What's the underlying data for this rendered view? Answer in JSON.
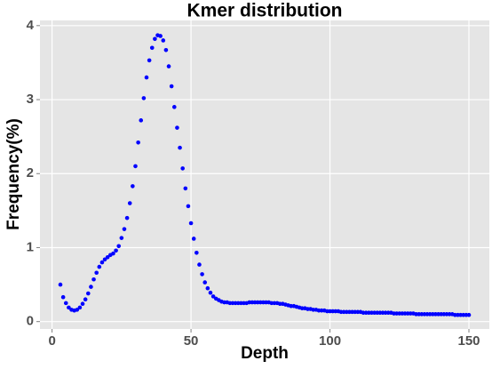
{
  "chart_data": {
    "type": "scatter",
    "title": "Kmer distribution",
    "x_label": "Depth",
    "y_label": "Frequency(%)",
    "color": "#0000ff",
    "grid": true,
    "xlim": [
      -4.35,
      157.35
    ],
    "ylim": [
      -0.1,
      4.07
    ],
    "xticks": [
      0,
      50,
      100,
      150
    ],
    "yticks": [
      0,
      1,
      2,
      3,
      4
    ],
    "x": [
      3,
      4,
      5,
      6,
      7,
      8,
      9,
      10,
      11,
      12,
      13,
      14,
      15,
      16,
      17,
      18,
      19,
      20,
      21,
      22,
      23,
      24,
      25,
      26,
      27,
      28,
      29,
      30,
      31,
      32,
      33,
      34,
      35,
      36,
      37,
      38,
      39,
      40,
      41,
      42,
      43,
      44,
      45,
      46,
      47,
      48,
      49,
      50,
      51,
      52,
      53,
      54,
      55,
      56,
      57,
      58,
      59,
      60,
      61,
      62,
      63,
      64,
      65,
      66,
      67,
      68,
      69,
      70,
      71,
      72,
      73,
      74,
      75,
      76,
      77,
      78,
      79,
      80,
      81,
      82,
      83,
      84,
      85,
      86,
      87,
      88,
      89,
      90,
      91,
      92,
      93,
      94,
      95,
      96,
      97,
      98,
      99,
      100,
      101,
      102,
      103,
      104,
      105,
      106,
      107,
      108,
      109,
      110,
      111,
      112,
      113,
      114,
      115,
      116,
      117,
      118,
      119,
      120,
      121,
      122,
      123,
      124,
      125,
      126,
      127,
      128,
      129,
      130,
      131,
      132,
      133,
      134,
      135,
      136,
      137,
      138,
      139,
      140,
      141,
      142,
      143,
      144,
      145,
      146,
      147,
      148,
      149,
      150
    ],
    "values": [
      0.5,
      0.33,
      0.25,
      0.19,
      0.16,
      0.15,
      0.16,
      0.19,
      0.24,
      0.3,
      0.38,
      0.47,
      0.57,
      0.66,
      0.74,
      0.8,
      0.84,
      0.87,
      0.9,
      0.92,
      0.96,
      1.02,
      1.13,
      1.25,
      1.4,
      1.6,
      1.83,
      2.1,
      2.42,
      2.72,
      3.02,
      3.3,
      3.53,
      3.7,
      3.82,
      3.87,
      3.86,
      3.8,
      3.67,
      3.45,
      3.18,
      2.9,
      2.62,
      2.35,
      2.07,
      1.8,
      1.56,
      1.33,
      1.12,
      0.93,
      0.77,
      0.64,
      0.53,
      0.45,
      0.39,
      0.34,
      0.31,
      0.29,
      0.27,
      0.26,
      0.26,
      0.25,
      0.25,
      0.25,
      0.25,
      0.25,
      0.25,
      0.25,
      0.26,
      0.26,
      0.26,
      0.26,
      0.26,
      0.26,
      0.26,
      0.26,
      0.25,
      0.25,
      0.25,
      0.24,
      0.24,
      0.23,
      0.22,
      0.21,
      0.21,
      0.2,
      0.19,
      0.18,
      0.18,
      0.17,
      0.17,
      0.16,
      0.16,
      0.15,
      0.15,
      0.15,
      0.14,
      0.14,
      0.14,
      0.14,
      0.14,
      0.13,
      0.13,
      0.13,
      0.13,
      0.13,
      0.13,
      0.13,
      0.13,
      0.12,
      0.12,
      0.12,
      0.12,
      0.12,
      0.12,
      0.12,
      0.12,
      0.12,
      0.12,
      0.12,
      0.11,
      0.11,
      0.11,
      0.11,
      0.11,
      0.11,
      0.11,
      0.11,
      0.1,
      0.1,
      0.1,
      0.1,
      0.1,
      0.1,
      0.1,
      0.1,
      0.1,
      0.1,
      0.1,
      0.1,
      0.1,
      0.1,
      0.09,
      0.09,
      0.09,
      0.09,
      0.09,
      0.09
    ]
  }
}
